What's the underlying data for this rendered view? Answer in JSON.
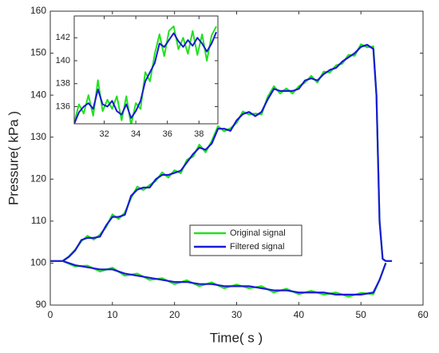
{
  "chart_data": [
    {
      "type": "line",
      "xlabel": "Time( s )",
      "ylabel": "Pressure( kPa )",
      "xlim": [
        0,
        60
      ],
      "ylim": [
        90,
        160
      ],
      "xticks": [
        0,
        10,
        20,
        30,
        40,
        50,
        60
      ],
      "yticks": [
        90,
        100,
        110,
        120,
        130,
        140,
        150,
        160
      ],
      "legend": "center",
      "x": [
        0,
        2,
        3,
        4,
        5,
        6,
        7,
        8,
        9,
        10,
        11,
        12,
        13,
        14,
        15,
        16,
        17,
        18,
        19,
        20,
        21,
        22,
        23,
        24,
        25,
        26,
        27,
        28,
        29,
        30,
        31,
        32,
        33,
        34,
        35,
        36,
        37,
        38,
        39,
        40,
        41,
        42,
        43,
        44,
        45,
        46,
        47,
        48,
        49,
        50,
        51,
        52,
        52.5,
        53,
        53.5,
        54,
        55,
        null,
        2,
        4,
        6,
        8,
        10,
        12,
        14,
        16,
        18,
        20,
        22,
        24,
        26,
        28,
        30,
        32,
        34,
        36,
        38,
        40,
        42,
        44,
        46,
        48,
        50,
        52,
        53,
        54
      ],
      "series": [
        {
          "name": "Original signal",
          "color": "#22e01e",
          "values": [
            100.5,
            100.5,
            101.6,
            103.2,
            105.2,
            106.5,
            105.6,
            106.8,
            108.6,
            111.6,
            110.5,
            112,
            115.5,
            118.2,
            117.4,
            118.6,
            119.6,
            121.6,
            120.4,
            122.1,
            121.4,
            124.6,
            125.4,
            128.2,
            126.4,
            129.1,
            132.6,
            131.4,
            132.1,
            133.4,
            136.1,
            135.4,
            135.6,
            135.4,
            139.6,
            142.1,
            140.4,
            141.6,
            140.4,
            142.1,
            143,
            144.6,
            143,
            145.6,
            145.4,
            147.1,
            147.5,
            149.6,
            149.4,
            152.1,
            151.4,
            151.6,
            140,
            110,
            101,
            100.5,
            100.5,
            null,
            100.5,
            99.2,
            99.4,
            98,
            98.9,
            97,
            97.5,
            96,
            96.4,
            95,
            95.9,
            94.5,
            95.4,
            94,
            94.9,
            94,
            94.5,
            93,
            93.9,
            92.6,
            93.4,
            92.5,
            93,
            92,
            92.9,
            92.6,
            96,
            100
          ]
        },
        {
          "name": "Filtered signal",
          "color": "#1a1ad6",
          "values": [
            100.5,
            100.5,
            101.5,
            103,
            105.5,
            106,
            106,
            106.3,
            109,
            111,
            111,
            111.5,
            116,
            117.5,
            118,
            118,
            120,
            121,
            121,
            121.5,
            122,
            124,
            126,
            127.5,
            127,
            128.5,
            132,
            132,
            131.5,
            134,
            135.5,
            136,
            135,
            136,
            139,
            141.5,
            141,
            141,
            141,
            141.5,
            143.5,
            144,
            143.5,
            145,
            146,
            146.5,
            148,
            149,
            150,
            151.5,
            152,
            151,
            140,
            110,
            101,
            100.5,
            100.5,
            null,
            100.5,
            99.5,
            99,
            98.5,
            98.5,
            97.5,
            97,
            96.5,
            96,
            95.5,
            95.5,
            95,
            95,
            94.5,
            94.5,
            94.5,
            94,
            93.5,
            93.5,
            93,
            93,
            93,
            92.5,
            92.5,
            92.5,
            93,
            96,
            100
          ]
        }
      ]
    },
    {
      "type": "line",
      "xlim": [
        30.1,
        39.2
      ],
      "ylim": [
        134.5,
        143.9
      ],
      "xticks": [
        32,
        34,
        36,
        38
      ],
      "yticks": [
        136,
        138,
        140,
        142
      ],
      "x": [
        30.1,
        30.4,
        30.7,
        31.0,
        31.3,
        31.6,
        31.9,
        32.2,
        32.5,
        32.8,
        33.1,
        33.4,
        33.7,
        34.0,
        34.3,
        34.6,
        34.9,
        35.2,
        35.5,
        35.8,
        36.1,
        36.4,
        36.7,
        37.0,
        37.3,
        37.6,
        37.9,
        38.2,
        38.5,
        38.8,
        39.1
      ],
      "series": [
        {
          "name": "Original signal",
          "color": "#22e01e",
          "values": [
            134.6,
            136.2,
            135.4,
            137,
            135.2,
            138.3,
            135.6,
            136.6,
            135.8,
            136.9,
            134.8,
            136.9,
            134.4,
            136.3,
            135.8,
            139,
            138.2,
            140.6,
            142.3,
            140.4,
            142.6,
            143,
            141,
            142,
            140.6,
            142.6,
            140.5,
            142.3,
            140,
            142.2,
            143
          ]
        },
        {
          "name": "Filtered signal",
          "color": "#1a1ad6",
          "values": [
            134.5,
            135.5,
            136,
            136.3,
            135.8,
            137.5,
            136.2,
            136,
            136.5,
            135.6,
            135.3,
            136.2,
            135,
            135.6,
            136.5,
            138.2,
            139,
            139.8,
            141.5,
            141.2,
            141.8,
            142.4,
            141.7,
            141.2,
            141.8,
            141.3,
            142,
            141.5,
            140.8,
            141.5,
            142.5
          ]
        }
      ]
    }
  ]
}
